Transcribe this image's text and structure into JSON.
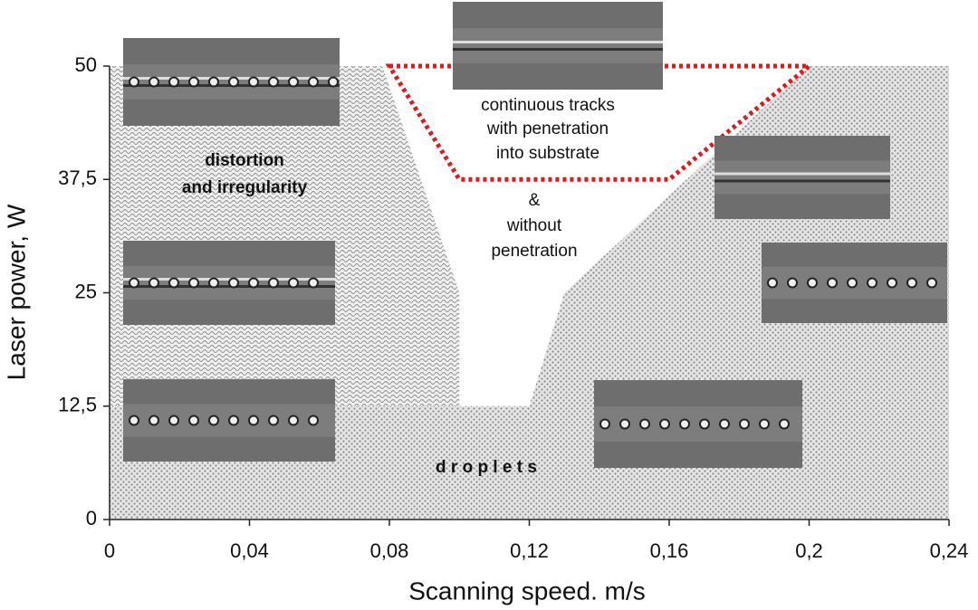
{
  "chart_data": {
    "type": "region-map",
    "x_label": "Scanning speed. m/s",
    "y_label": "Laser power, W",
    "xlim": [
      0,
      0.24
    ],
    "ylim": [
      0,
      50
    ],
    "xticks": [
      0,
      {
        "value": 0.04,
        "label": "0,04"
      },
      {
        "value": 0.08,
        "label": "0,08"
      },
      {
        "value": 0.12,
        "label": "0,12"
      },
      {
        "value": 0.16,
        "label": "0,16"
      },
      {
        "value": 0.2,
        "label": "0,2"
      },
      {
        "value": 0.24,
        "label": "0,24"
      }
    ],
    "yticks": [
      0,
      {
        "value": 12.5,
        "label": "12,5"
      },
      25,
      {
        "value": 37.5,
        "label": "37,5"
      },
      50
    ],
    "regions": [
      {
        "lines": [
          "d r o p l e t s"
        ],
        "pattern": "dots",
        "x": [
          0,
          0,
          0.12,
          0.13,
          0.2,
          0.24,
          0.24
        ],
        "y": [
          0,
          12.5,
          12.5,
          25,
          50,
          50,
          0
        ]
      },
      {
        "lines": [
          "distortion",
          "and irregularity"
        ],
        "pattern": "waves",
        "x": [
          0,
          0,
          0.078,
          0.1,
          0.1
        ],
        "y": [
          12.5,
          50,
          50,
          25,
          12.5
        ]
      },
      {
        "lines": [
          "continuous tracks",
          "with penetration",
          "into substrate"
        ],
        "pattern": "dashed-outline",
        "color": "#e0191f",
        "x": [
          0.08,
          0.2,
          0.16,
          0.1
        ],
        "y": [
          50,
          50,
          37.5,
          37.5
        ]
      }
    ],
    "annotation": [
      "&",
      "without",
      "penetration"
    ]
  }
}
